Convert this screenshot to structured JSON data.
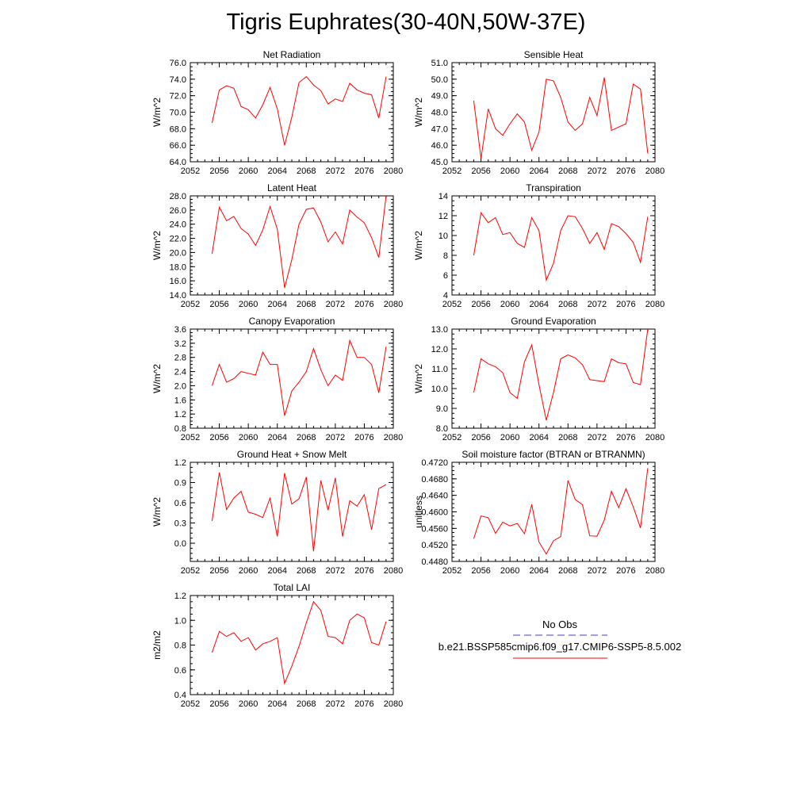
{
  "title": "Tigris Euphrates(30-40N,50W-37E)",
  "legend": {
    "obs_label": "No Obs",
    "obs_color": "#3b3bd8",
    "case_label": "b.e21.BSSP585cmip6.f09_g17.CMIP6-SSP5-8.5.002",
    "case_color": "#ff0000"
  },
  "chart_data": [
    {
      "type": "line",
      "title": "Net Radiation",
      "ylabel": "W/m^2",
      "xlim": [
        2052,
        2080
      ],
      "ylim": [
        64,
        76
      ],
      "xticks": [
        "2052",
        "2056",
        "2060",
        "2064",
        "2068",
        "2072",
        "2076",
        "2080"
      ],
      "yticks": [
        "64.0",
        "66.0",
        "68.0",
        "70.0",
        "72.0",
        "74.0",
        "76.0"
      ],
      "x": [
        2055,
        2056,
        2057,
        2058,
        2059,
        2060,
        2061,
        2062,
        2063,
        2064,
        2065,
        2066,
        2067,
        2068,
        2069,
        2070,
        2071,
        2072,
        2073,
        2074,
        2075,
        2076,
        2077,
        2078,
        2079
      ],
      "values": [
        68.7,
        72.7,
        73.2,
        72.9,
        70.7,
        70.3,
        69.3,
        70.9,
        73.0,
        70.4,
        66.0,
        69.4,
        73.6,
        74.3,
        73.3,
        72.6,
        71.0,
        71.6,
        71.3,
        73.5,
        72.7,
        72.3,
        72.1,
        69.3,
        74.3
      ]
    },
    {
      "type": "line",
      "title": "Sensible Heat",
      "ylabel": "W/m^2",
      "xlim": [
        2052,
        2080
      ],
      "ylim": [
        45,
        51
      ],
      "xticks": [
        "2052",
        "2056",
        "2060",
        "2064",
        "2068",
        "2072",
        "2076",
        "2080"
      ],
      "yticks": [
        "45.0",
        "46.0",
        "47.0",
        "48.0",
        "49.0",
        "50.0",
        "51.0"
      ],
      "x": [
        2055,
        2056,
        2057,
        2058,
        2059,
        2060,
        2061,
        2062,
        2063,
        2064,
        2065,
        2066,
        2067,
        2068,
        2069,
        2070,
        2071,
        2072,
        2073,
        2074,
        2075,
        2076,
        2077,
        2078,
        2079
      ],
      "values": [
        48.7,
        45.2,
        48.2,
        47.0,
        46.6,
        47.3,
        47.9,
        47.4,
        45.7,
        46.8,
        50.0,
        49.9,
        48.9,
        47.4,
        46.9,
        47.3,
        48.9,
        47.8,
        50.1,
        46.9,
        47.1,
        47.3,
        49.7,
        49.4,
        45.5
      ]
    },
    {
      "type": "line",
      "title": "Latent Heat",
      "ylabel": "W/m^2",
      "xlim": [
        2052,
        2080
      ],
      "ylim": [
        14,
        28
      ],
      "xticks": [
        "2052",
        "2056",
        "2060",
        "2064",
        "2068",
        "2072",
        "2076",
        "2080"
      ],
      "yticks": [
        "14.0",
        "16.0",
        "18.0",
        "20.0",
        "22.0",
        "24.0",
        "26.0",
        "28.0"
      ],
      "x": [
        2055,
        2056,
        2057,
        2058,
        2059,
        2060,
        2061,
        2062,
        2063,
        2064,
        2065,
        2066,
        2067,
        2068,
        2069,
        2070,
        2071,
        2072,
        2073,
        2074,
        2075,
        2076,
        2077,
        2078,
        2079
      ],
      "values": [
        19.8,
        26.4,
        24.5,
        25.1,
        23.4,
        22.6,
        21.0,
        23.2,
        26.5,
        23.3,
        15.0,
        19.0,
        24.0,
        26.1,
        26.3,
        24.3,
        21.5,
        22.9,
        21.2,
        26.0,
        25.0,
        24.2,
        22.1,
        19.3,
        28.0
      ]
    },
    {
      "type": "line",
      "title": "Transpiration",
      "ylabel": "W/m^2",
      "xlim": [
        2052,
        2080
      ],
      "ylim": [
        4,
        14
      ],
      "xticks": [
        "2052",
        "2056",
        "2060",
        "2064",
        "2068",
        "2072",
        "2076",
        "2080"
      ],
      "yticks": [
        "4",
        "6",
        "8",
        "10",
        "12",
        "14"
      ],
      "x": [
        2055,
        2056,
        2057,
        2058,
        2059,
        2060,
        2061,
        2062,
        2063,
        2064,
        2065,
        2066,
        2067,
        2068,
        2069,
        2070,
        2071,
        2072,
        2073,
        2074,
        2075,
        2076,
        2077,
        2078,
        2079
      ],
      "values": [
        8.0,
        12.3,
        11.3,
        11.8,
        10.1,
        10.3,
        9.2,
        8.8,
        11.8,
        10.5,
        5.5,
        7.2,
        10.5,
        12.0,
        11.9,
        10.7,
        9.2,
        10.3,
        8.6,
        11.2,
        10.9,
        10.2,
        9.3,
        7.3,
        11.9
      ]
    },
    {
      "type": "line",
      "title": "Canopy Evaporation",
      "ylabel": "W/m^2",
      "xlim": [
        2052,
        2080
      ],
      "ylim": [
        0.8,
        3.6
      ],
      "xticks": [
        "2052",
        "2056",
        "2060",
        "2064",
        "2068",
        "2072",
        "2076",
        "2080"
      ],
      "yticks": [
        "0.8",
        "1.2",
        "1.6",
        "2.0",
        "2.4",
        "2.8",
        "3.2",
        "3.6"
      ],
      "x": [
        2055,
        2056,
        2057,
        2058,
        2059,
        2060,
        2061,
        2062,
        2063,
        2064,
        2065,
        2066,
        2067,
        2068,
        2069,
        2070,
        2071,
        2072,
        2073,
        2074,
        2075,
        2076,
        2077,
        2078,
        2079
      ],
      "values": [
        2.0,
        2.6,
        2.1,
        2.2,
        2.4,
        2.35,
        2.3,
        2.95,
        2.6,
        2.6,
        1.15,
        1.85,
        2.1,
        2.4,
        3.05,
        2.45,
        2.0,
        2.3,
        2.15,
        3.28,
        2.8,
        2.8,
        2.6,
        1.8,
        3.1
      ]
    },
    {
      "type": "line",
      "title": "Ground Evaporation",
      "ylabel": "W/m^2",
      "xlim": [
        2052,
        2080
      ],
      "ylim": [
        8,
        13
      ],
      "xticks": [
        "2052",
        "2056",
        "2060",
        "2064",
        "2068",
        "2072",
        "2076",
        "2080"
      ],
      "yticks": [
        "8.0",
        "9.0",
        "10.0",
        "11.0",
        "12.0",
        "13.0"
      ],
      "x": [
        2055,
        2056,
        2057,
        2058,
        2059,
        2060,
        2061,
        2062,
        2063,
        2064,
        2065,
        2066,
        2067,
        2068,
        2069,
        2070,
        2071,
        2072,
        2073,
        2074,
        2075,
        2076,
        2077,
        2078,
        2079
      ],
      "values": [
        9.8,
        11.5,
        11.25,
        11.1,
        10.8,
        9.8,
        9.5,
        11.35,
        12.2,
        10.2,
        8.4,
        9.8,
        11.5,
        11.7,
        11.55,
        11.2,
        10.45,
        10.4,
        10.35,
        11.5,
        11.3,
        11.25,
        10.3,
        10.2,
        13.0
      ]
    },
    {
      "type": "line",
      "title": "Ground Heat + Snow Melt",
      "ylabel": "W/m^2",
      "xlim": [
        2052,
        2080
      ],
      "ylim": [
        -0.27,
        1.2
      ],
      "xticks": [
        "2052",
        "2056",
        "2060",
        "2064",
        "2068",
        "2072",
        "2076",
        "2080"
      ],
      "yticks": [
        "0.0",
        "0.3",
        "0.6",
        "0.9",
        "1.2"
      ],
      "x": [
        2055,
        2056,
        2057,
        2058,
        2059,
        2060,
        2061,
        2062,
        2063,
        2064,
        2065,
        2066,
        2067,
        2068,
        2069,
        2070,
        2071,
        2072,
        2073,
        2074,
        2075,
        2076,
        2077,
        2078,
        2079
      ],
      "values": [
        0.33,
        1.05,
        0.5,
        0.67,
        0.77,
        0.46,
        0.43,
        0.38,
        0.67,
        0.1,
        1.04,
        0.58,
        0.66,
        0.98,
        -0.12,
        0.93,
        0.49,
        0.97,
        0.1,
        0.63,
        0.55,
        0.72,
        0.2,
        0.81,
        0.87
      ]
    },
    {
      "type": "line",
      "title": "Soil moisture factor (BTRAN or BTRANMN)",
      "ylabel": "unitless",
      "xlim": [
        2052,
        2080
      ],
      "ylim": [
        0.448,
        0.472
      ],
      "xticks": [
        "2052",
        "2056",
        "2060",
        "2064",
        "2068",
        "2072",
        "2076",
        "2080"
      ],
      "yticks": [
        "0.4480",
        "0.4520",
        "0.4560",
        "0.4600",
        "0.4640",
        "0.4680",
        "0.4720"
      ],
      "x": [
        2055,
        2056,
        2057,
        2058,
        2059,
        2060,
        2061,
        2062,
        2063,
        2064,
        2065,
        2066,
        2067,
        2068,
        2069,
        2070,
        2071,
        2072,
        2073,
        2074,
        2075,
        2076,
        2077,
        2078,
        2079
      ],
      "values": [
        0.4535,
        0.459,
        0.4586,
        0.4548,
        0.4575,
        0.4566,
        0.4572,
        0.4547,
        0.4618,
        0.4527,
        0.4498,
        0.453,
        0.454,
        0.4676,
        0.463,
        0.4617,
        0.4542,
        0.4541,
        0.458,
        0.465,
        0.461,
        0.4656,
        0.4612,
        0.4561,
        0.4706
      ]
    },
    {
      "type": "line",
      "title": "Total LAI",
      "ylabel": "m2/m2",
      "xlim": [
        2052,
        2080
      ],
      "ylim": [
        0.4,
        1.2
      ],
      "xticks": [
        "2052",
        "2056",
        "2060",
        "2064",
        "2068",
        "2072",
        "2076",
        "2080"
      ],
      "yticks": [
        "0.4",
        "0.6",
        "0.8",
        "1.0",
        "1.2"
      ],
      "x": [
        2055,
        2056,
        2057,
        2058,
        2059,
        2060,
        2061,
        2062,
        2063,
        2064,
        2065,
        2066,
        2067,
        2068,
        2069,
        2070,
        2071,
        2072,
        2073,
        2074,
        2075,
        2076,
        2077,
        2078,
        2079
      ],
      "values": [
        0.74,
        0.91,
        0.87,
        0.9,
        0.83,
        0.86,
        0.76,
        0.81,
        0.83,
        0.86,
        0.49,
        0.63,
        0.79,
        0.98,
        1.15,
        1.08,
        0.87,
        0.86,
        0.81,
        1.0,
        1.05,
        1.02,
        0.82,
        0.8,
        0.99
      ]
    }
  ]
}
